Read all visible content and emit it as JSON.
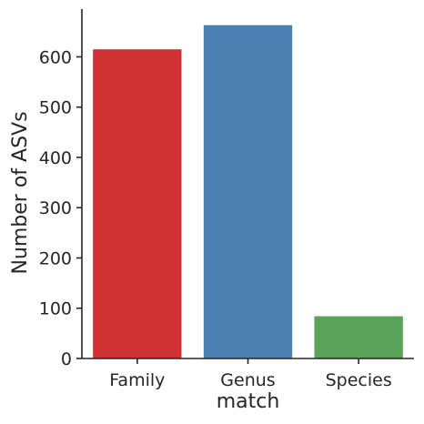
{
  "chart_data": {
    "type": "bar",
    "title": "",
    "xlabel": "match",
    "ylabel": "Number of ASVs",
    "categories": [
      "Family",
      "Genus",
      "Species"
    ],
    "values": [
      615,
      663,
      84
    ],
    "colors": [
      "#d03234",
      "#4a7fb0",
      "#5ba358"
    ],
    "ylim": [
      0,
      695
    ],
    "yticks": [
      0,
      100,
      200,
      300,
      400,
      500,
      600
    ],
    "grid": false,
    "legend": "none"
  }
}
